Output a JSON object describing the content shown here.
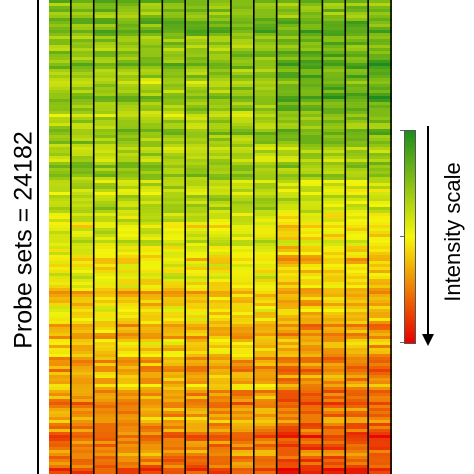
{
  "ylabel": "Probe sets = 24182",
  "scale_label": "Intensity scale",
  "colors": {
    "high": "#1e8c1e",
    "mid": "#f5f50a",
    "low": "#e60000",
    "divider": "#000000"
  },
  "chart_data": {
    "type": "heatmap",
    "rows_label": "Probe sets = 24182",
    "columns": 15,
    "column_groups": [
      {
        "columns": 10
      },
      {
        "columns": 5
      }
    ],
    "colorscale": {
      "label": "Intensity scale",
      "stops": [
        "#1e8c1e",
        "#f5f50a",
        "#e60000"
      ],
      "direction": "high intensity (green) at top to low intensity (red) at bottom"
    },
    "row_profile": {
      "description": "intensity by row position (0 = top, 1 = bottom); 0 = green, 0.5 = yellow, 1 = red",
      "group_1": [
        [
          0,
          0.2
        ],
        [
          0.18,
          0.3
        ],
        [
          0.38,
          0.32
        ],
        [
          0.5,
          0.45
        ],
        [
          0.62,
          0.55
        ],
        [
          0.75,
          0.62
        ],
        [
          0.88,
          0.7
        ],
        [
          1,
          0.78
        ]
      ],
      "group_2": [
        [
          0,
          0.22
        ],
        [
          0.18,
          0.15
        ],
        [
          0.38,
          0.35
        ],
        [
          0.5,
          0.55
        ],
        [
          0.62,
          0.6
        ],
        [
          0.75,
          0.7
        ],
        [
          0.88,
          0.78
        ],
        [
          1,
          0.85
        ]
      ]
    }
  }
}
